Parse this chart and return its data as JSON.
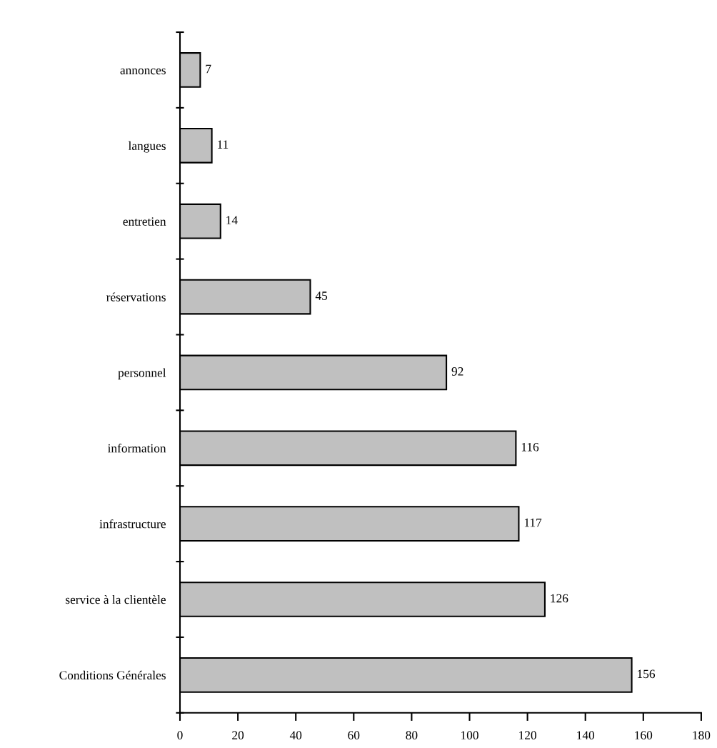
{
  "chart_data": {
    "type": "bar",
    "orientation": "horizontal",
    "categories": [
      "annonces",
      "langues",
      "entretien",
      "réservations",
      "personnel",
      "information",
      "infrastructure",
      "service à la clientèle",
      "Conditions Générales"
    ],
    "values": [
      7,
      11,
      14,
      45,
      92,
      116,
      117,
      126,
      156
    ],
    "color": "#c0c0c0",
    "xlim": [
      0,
      180
    ],
    "xticks": [
      0,
      20,
      40,
      60,
      80,
      100,
      120,
      140,
      160,
      180
    ],
    "data_labels": true,
    "grid": false,
    "legend": false
  }
}
